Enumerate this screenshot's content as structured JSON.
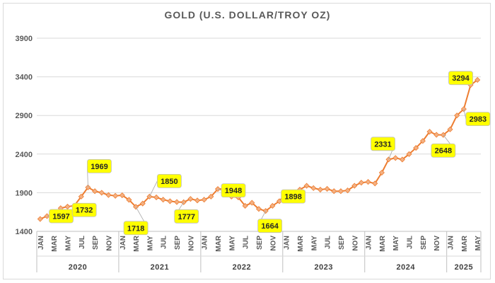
{
  "chart_data": {
    "type": "line",
    "title": "GOLD (U.S. DOLLAR/TROY OZ)",
    "ylim": [
      1400,
      3900
    ],
    "yticks": [
      1400,
      1900,
      2400,
      2900,
      3400,
      3900
    ],
    "month_ticks": [
      "JAN",
      "MAR",
      "MAY",
      "JUL",
      "SEP",
      "NOV",
      "JAN",
      "MAR",
      "MAY",
      "JUL",
      "SEP",
      "NOV",
      "JAN",
      "MAR",
      "MAY",
      "JUL",
      "SEP",
      "NOV",
      "JAN",
      "MAR",
      "MAY",
      "JUL",
      "SEP",
      "NOV",
      "JAN",
      "MAR",
      "MAY",
      "JUL",
      "SEP",
      "NOV",
      "JAN",
      "MAR",
      "MAY"
    ],
    "years": [
      "2020",
      "2021",
      "2022",
      "2023",
      "2024",
      "2025"
    ],
    "grid": true,
    "line_color": "#ED7D31",
    "marker_color": "#F4B183",
    "label_fill": "#FFFF00",
    "series": [
      {
        "values": [
          1560,
          1597,
          1620,
          1700,
          1720,
          1732,
          1850,
          1969,
          1920,
          1900,
          1870,
          1860,
          1867,
          1808,
          1718,
          1760,
          1850,
          1840,
          1810,
          1790,
          1780,
          1777,
          1820,
          1800,
          1810,
          1850,
          1948,
          1950,
          1850,
          1840,
          1730,
          1770,
          1690,
          1664,
          1730,
          1790,
          1898,
          1855,
          1940,
          1990,
          1960,
          1940,
          1950,
          1920,
          1920,
          1930,
          1990,
          2030,
          2040,
          2020,
          2160,
          2331,
          2350,
          2330,
          2400,
          2480,
          2570,
          2690,
          2650,
          2648,
          2720,
          2900,
          2983,
          3294,
          3360
        ]
      }
    ],
    "data_labels": [
      {
        "index": 1,
        "text": "1597"
      },
      {
        "index": 5,
        "text": "1732"
      },
      {
        "index": 7,
        "text": "1969"
      },
      {
        "index": 14,
        "text": "1718"
      },
      {
        "index": 16,
        "text": "1850"
      },
      {
        "index": 21,
        "text": "1777"
      },
      {
        "index": 26,
        "text": "1948"
      },
      {
        "index": 33,
        "text": "1664"
      },
      {
        "index": 36,
        "text": "1898"
      },
      {
        "index": 51,
        "text": "2331"
      },
      {
        "index": 59,
        "text": "2648"
      },
      {
        "index": 62,
        "text": "2983"
      },
      {
        "index": 63,
        "text": "3294"
      }
    ]
  }
}
